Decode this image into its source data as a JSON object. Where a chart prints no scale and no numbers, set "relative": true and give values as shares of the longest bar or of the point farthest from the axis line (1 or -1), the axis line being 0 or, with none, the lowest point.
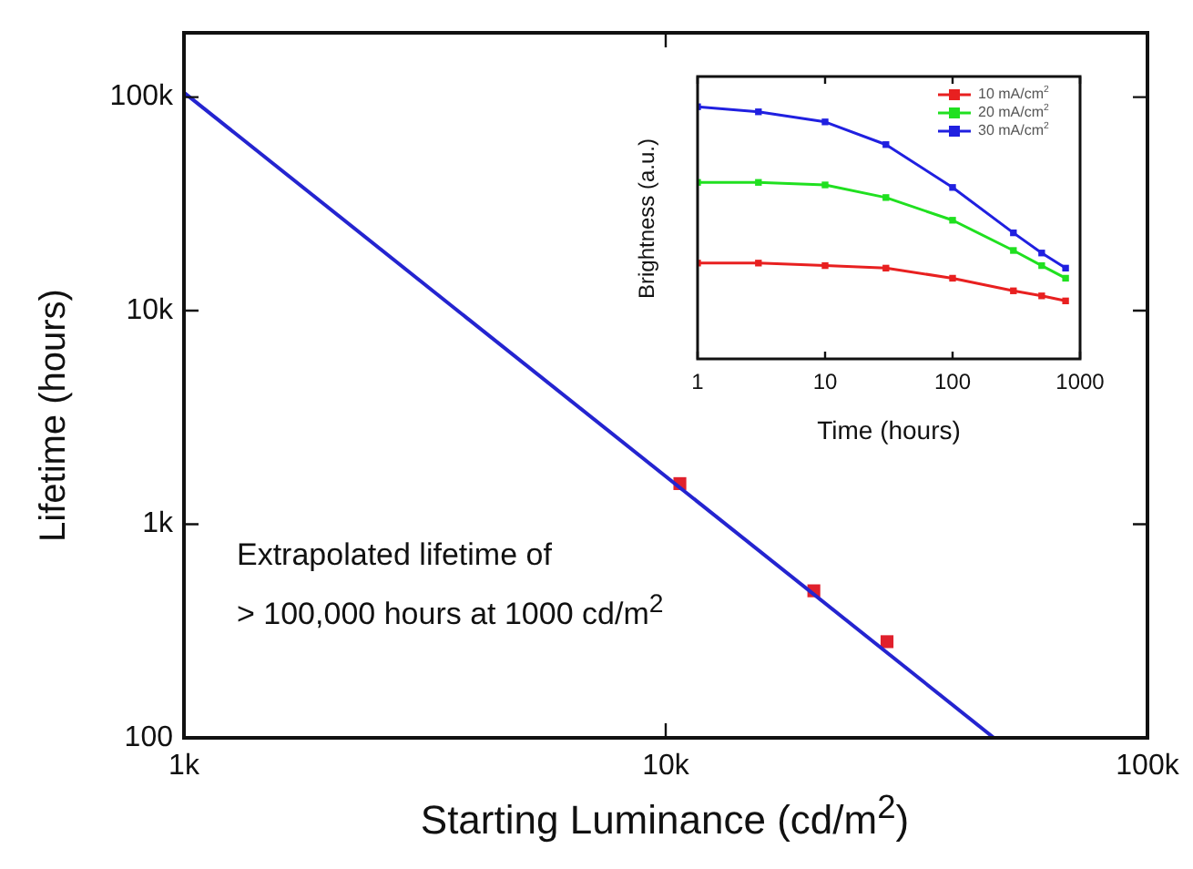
{
  "chart_data": [
    {
      "type": "line",
      "xlabel": "Starting Luminance (cd/m$^{2}$)",
      "ylabel": "Lifetime (hours)",
      "log": "xy",
      "grid": false,
      "legend": false,
      "xlim": [
        1000,
        100000
      ],
      "xticks": [
        {
          "value": 1000,
          "label": "1k"
        },
        {
          "value": 10000,
          "label": "10k"
        },
        {
          "value": 100000,
          "label": "100k"
        }
      ],
      "ylim": [
        100,
        200000
      ],
      "yticks": [
        100,
        {
          "value": 1000,
          "label": "1k"
        },
        {
          "value": 10000,
          "label": "10k"
        },
        {
          "value": 100000,
          "label": "100k"
        }
      ],
      "series": [
        {
          "type": "line",
          "color": "#2424d0",
          "marker": "none",
          "x": [
            1000,
            48000
          ],
          "values": [
            105000,
            100
          ]
        },
        {
          "type": "scatter",
          "color": "#e0202c",
          "marker": "square",
          "x": [
            10700,
            20300,
            28800
          ],
          "values": [
            1550,
            488,
            282
          ]
        }
      ],
      "annotations": [
        "Extrapolated lifetime of\n> 100,000 hours at 1000 cd/m$^{2}$"
      ]
    },
    {
      "type": "line",
      "xlabel": "Time (hours)",
      "ylabel": "Brightness (a.u.)",
      "log": "x",
      "grid": false,
      "legend": "top right",
      "relative": true,
      "tick_labels": "x",
      "marker": "square",
      "xlim": [
        1,
        1000
      ],
      "xticks": [
        1,
        10,
        100,
        1000
      ],
      "x": [
        1,
        3,
        10,
        30,
        100,
        300,
        500,
        770
      ],
      "series": [
        {
          "name": "10 mA/cm$^{2}$",
          "color": "#e82020",
          "values": [
            0.38,
            0.38,
            0.37,
            0.36,
            0.32,
            0.27,
            0.25,
            0.23
          ]
        },
        {
          "name": "20 mA/cm$^{2}$",
          "color": "#20e020",
          "values": [
            0.7,
            0.7,
            0.69,
            0.64,
            0.55,
            0.43,
            0.37,
            0.32
          ]
        },
        {
          "name": "30 mA/cm$^{2}$",
          "color": "#2020e0",
          "values": [
            1,
            0.98,
            0.94,
            0.85,
            0.68,
            0.5,
            0.42,
            0.36
          ]
        }
      ]
    }
  ]
}
